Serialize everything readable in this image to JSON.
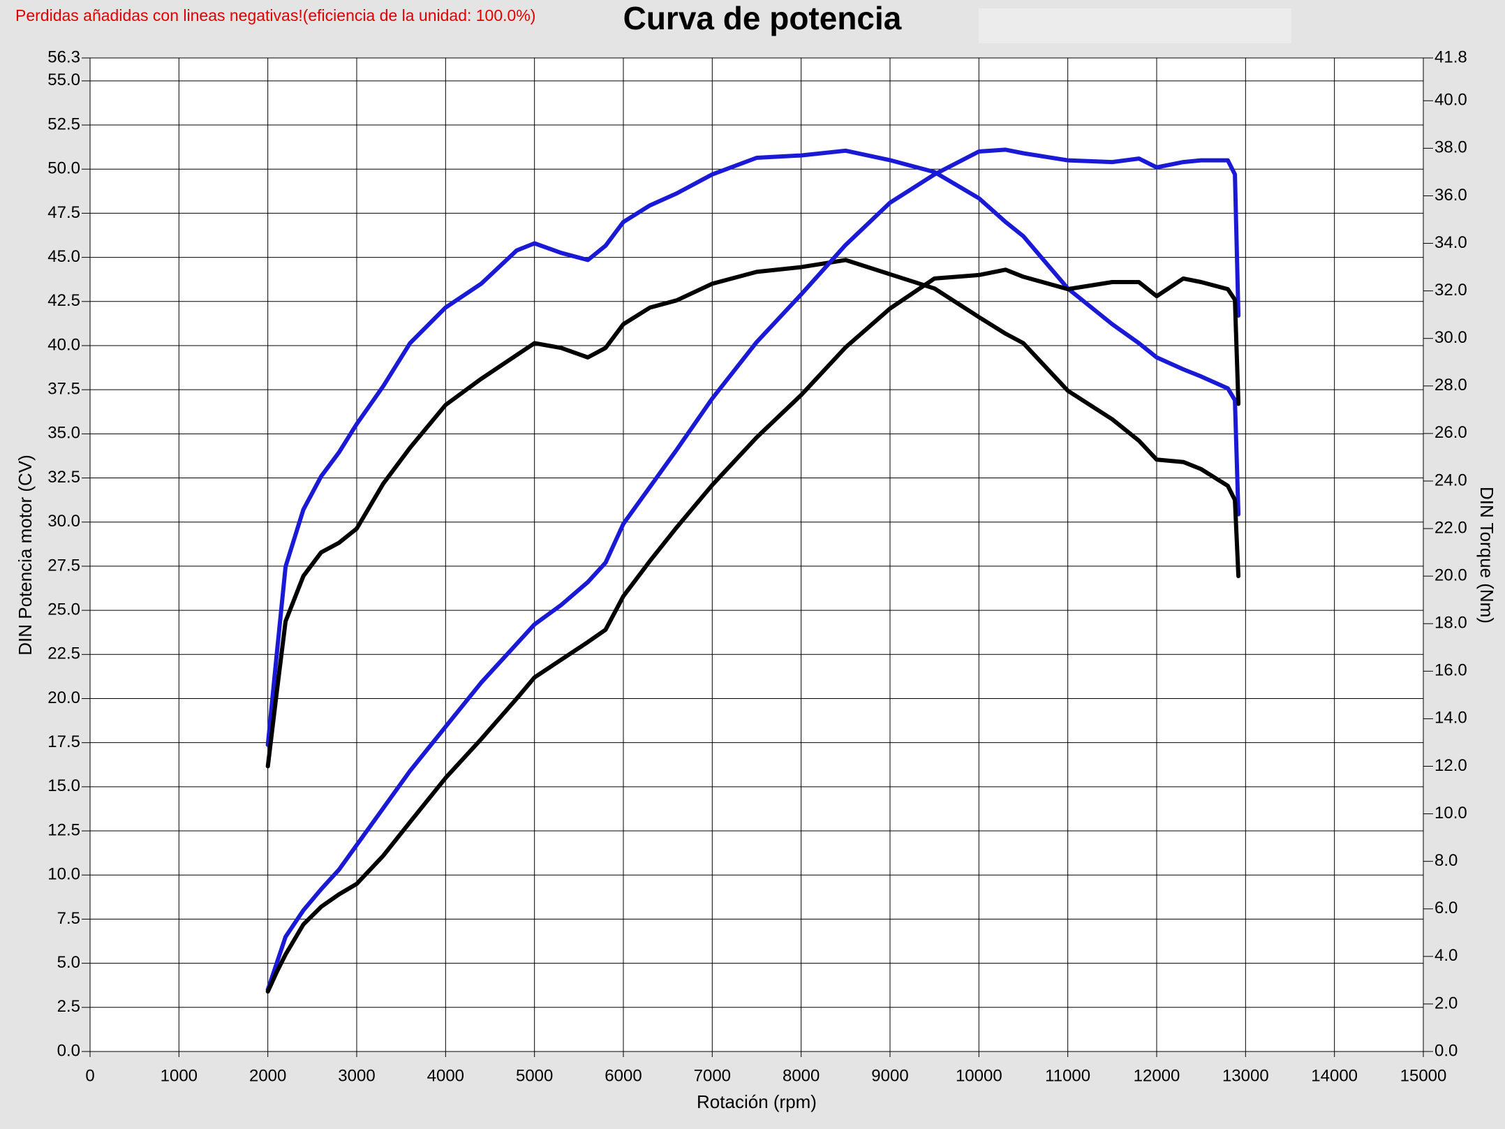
{
  "chart_data": {
    "type": "line",
    "title": "Curva de potencia",
    "note": "Perdidas añadidas con lineas negativas!(eficiencia de la unidad: 100.0%)",
    "x_label": "Rotación (rpm)",
    "y_label": "DIN Potencia motor (CV)",
    "y2_label": "DIN Torque (Nm)",
    "grid": true,
    "xlim": [
      0,
      15000
    ],
    "xticks": [
      0,
      1000,
      2000,
      3000,
      4000,
      5000,
      6000,
      7000,
      8000,
      9000,
      10000,
      11000,
      12000,
      13000,
      14000,
      15000
    ],
    "ylim": [
      0,
      56.3
    ],
    "yticks": [
      {
        "value": 0,
        "label": "0.0"
      },
      2.5,
      {
        "value": 5,
        "label": "5.0"
      },
      7.5,
      {
        "value": 10,
        "label": "10.0"
      },
      12.5,
      {
        "value": 15,
        "label": "15.0"
      },
      17.5,
      {
        "value": 20,
        "label": "20.0"
      },
      22.5,
      {
        "value": 25,
        "label": "25.0"
      },
      27.5,
      {
        "value": 30,
        "label": "30.0"
      },
      32.5,
      {
        "value": 35,
        "label": "35.0"
      },
      37.5,
      {
        "value": 40,
        "label": "40.0"
      },
      42.5,
      {
        "value": 45,
        "label": "45.0"
      },
      47.5,
      {
        "value": 50,
        "label": "50.0"
      },
      52.5,
      {
        "value": 55,
        "label": "55.0"
      },
      56.3
    ],
    "y2lim": [
      0,
      41.8
    ],
    "y2ticks": [
      {
        "value": 0,
        "label": "0.0"
      },
      {
        "value": 2,
        "label": "2.0"
      },
      {
        "value": 4,
        "label": "4.0"
      },
      {
        "value": 6,
        "label": "6.0"
      },
      {
        "value": 8,
        "label": "8.0"
      },
      {
        "value": 10,
        "label": "10.0"
      },
      {
        "value": 12,
        "label": "12.0"
      },
      {
        "value": 14,
        "label": "14.0"
      },
      {
        "value": 16,
        "label": "16.0"
      },
      {
        "value": 18,
        "label": "18.0"
      },
      {
        "value": 20,
        "label": "20.0"
      },
      {
        "value": 22,
        "label": "22.0"
      },
      {
        "value": 24,
        "label": "24.0"
      },
      {
        "value": 26,
        "label": "26.0"
      },
      {
        "value": 28,
        "label": "28.0"
      },
      {
        "value": 30,
        "label": "30.0"
      },
      {
        "value": 32,
        "label": "32.0"
      },
      {
        "value": 34,
        "label": "34.0"
      },
      {
        "value": 36,
        "label": "36.0"
      },
      {
        "value": 38,
        "label": "38.0"
      },
      {
        "value": 40,
        "label": "40.0"
      },
      41.8
    ],
    "x": [
      2000,
      2100,
      2200,
      2400,
      2600,
      2800,
      3000,
      3300,
      3600,
      4000,
      4400,
      4800,
      5000,
      5300,
      5600,
      5800,
      6000,
      6300,
      6600,
      7000,
      7500,
      8000,
      8500,
      9000,
      9500,
      10000,
      10300,
      10500,
      11000,
      11500,
      11800,
      12000,
      12300,
      12500,
      12800,
      12880,
      12920
    ],
    "series": [
      {
        "color": "#1a1ad6",
        "axis": "y2",
        "values": [
          12.9,
          16.7,
          20.4,
          22.8,
          24.2,
          25.2,
          26.4,
          28.0,
          29.8,
          31.3,
          32.3,
          33.7,
          34.0,
          33.6,
          33.3,
          33.9,
          34.9,
          35.6,
          36.1,
          36.9,
          37.6,
          37.7,
          37.9,
          37.5,
          37.0,
          35.9,
          34.9,
          34.3,
          32.1,
          30.6,
          29.8,
          29.2,
          28.7,
          28.4,
          27.9,
          27.4,
          22.6
        ]
      },
      {
        "color": "#000000",
        "axis": "y2",
        "values": [
          12.0,
          15.1,
          18.1,
          20.0,
          21.0,
          21.4,
          22.0,
          23.9,
          25.4,
          27.2,
          28.3,
          29.3,
          29.8,
          29.6,
          29.2,
          29.6,
          30.6,
          31.3,
          31.6,
          32.3,
          32.8,
          33.0,
          33.3,
          32.7,
          32.1,
          30.9,
          30.2,
          29.8,
          27.8,
          26.6,
          25.7,
          24.9,
          24.8,
          24.5,
          23.8,
          23.2,
          20.0
        ]
      },
      {
        "color": "#1a1ad6",
        "values": [
          3.5,
          5.0,
          6.5,
          8.0,
          9.2,
          10.3,
          11.7,
          13.8,
          15.9,
          18.4,
          20.9,
          23.1,
          24.2,
          25.3,
          26.6,
          27.7,
          29.9,
          32.0,
          34.1,
          37.0,
          40.2,
          42.9,
          45.7,
          48.1,
          49.7,
          51.0,
          51.1,
          50.9,
          50.5,
          50.4,
          50.6,
          50.1,
          50.4,
          50.5,
          50.5,
          49.7,
          41.7
        ]
      },
      {
        "color": "#000000",
        "values": [
          3.4,
          4.5,
          5.5,
          7.2,
          8.2,
          8.9,
          9.5,
          11.1,
          13.0,
          15.5,
          17.7,
          20.0,
          21.2,
          22.2,
          23.2,
          23.9,
          25.8,
          27.8,
          29.7,
          32.1,
          34.8,
          37.2,
          39.9,
          42.1,
          43.8,
          44.0,
          44.3,
          43.9,
          43.2,
          43.6,
          43.6,
          42.8,
          43.8,
          43.6,
          43.2,
          42.6,
          36.7
        ]
      }
    ]
  }
}
